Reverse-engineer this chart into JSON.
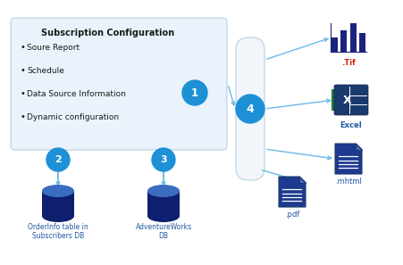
{
  "bg_color": "#ffffff",
  "box_fc": "#eaf3fb",
  "box_ec": "#b8cfe0",
  "circle_color": "#1e90d5",
  "arrow_color": "#6bb8e8",
  "db_body_color": "#0d1f6e",
  "db_cap_color": "#3a6cc0",
  "conn_fc": "#f2f6fb",
  "conn_ec": "#b8cfe0",
  "title": "Subscription Configuration",
  "bullet_items": [
    "Soure Report",
    "Schedule",
    "Data Source Information",
    "Dynamic configuration"
  ],
  "db_label_1": "OrderInfo table in\nSubscribers DB",
  "db_label_2": "AdventureWorks\nDB",
  "tif_label": ".Tif",
  "excel_label": "Excel",
  "mhtml_label": ".mhtml",
  "pdf_label": ".pdf",
  "label_color": "#1e56a0",
  "tif_color": "#cc2200",
  "bar_color": "#1a237e",
  "doc_body": "#1e3a8f",
  "doc_fold": "#4a6fbf",
  "excel_bg": "#1a3c7a",
  "excel_x_color": "#ffffff",
  "text_color": "#1a1a1a"
}
